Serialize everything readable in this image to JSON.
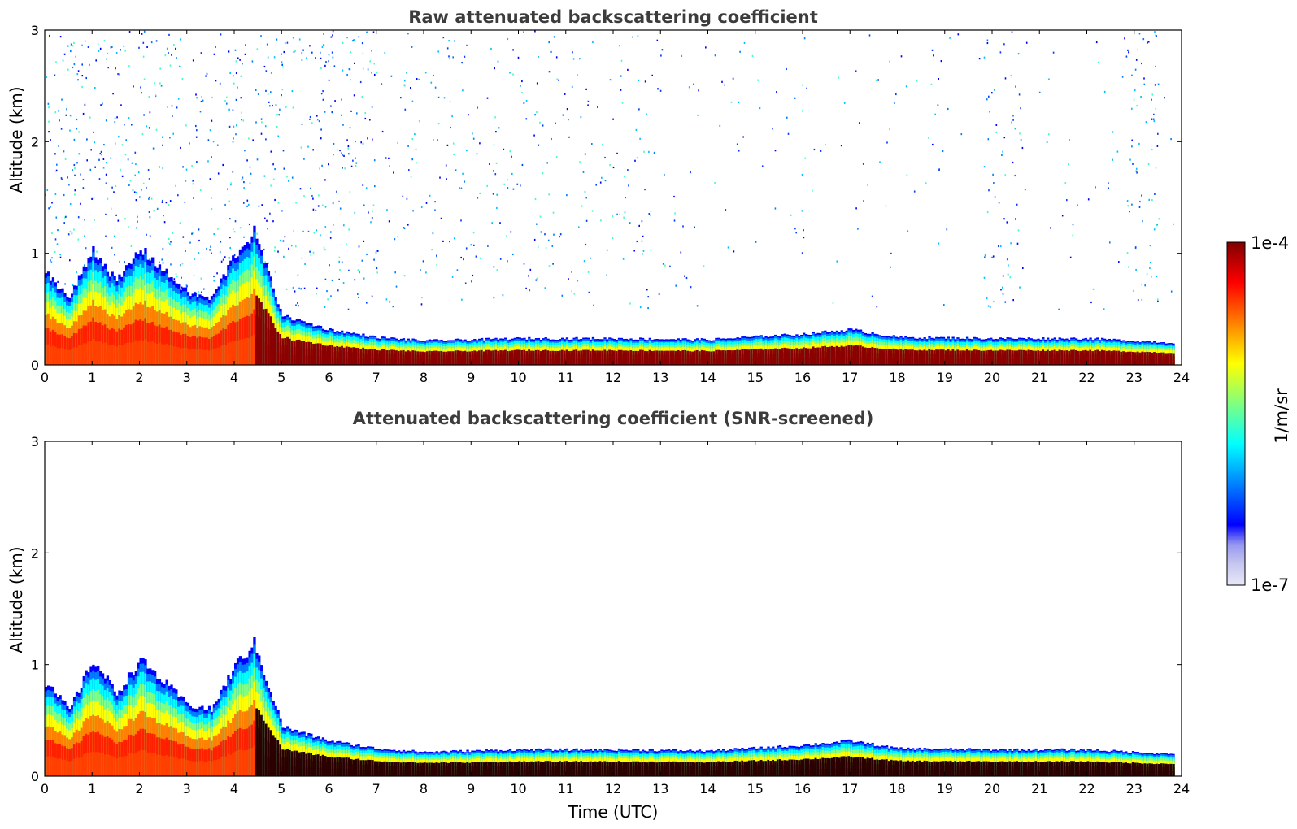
{
  "chart_data": [
    {
      "type": "heatmap",
      "title": "Raw attenuated backscattering coefficient",
      "xlabel": "",
      "ylabel": "Altitude (km)",
      "xlim": [
        0,
        24
      ],
      "ylim": [
        0,
        3
      ],
      "xticks": [
        0,
        1,
        2,
        3,
        4,
        5,
        6,
        7,
        8,
        9,
        10,
        11,
        12,
        13,
        14,
        15,
        16,
        17,
        18,
        19,
        20,
        21,
        22,
        23,
        24
      ],
      "yticks": [
        0,
        1,
        2,
        3
      ],
      "colorscale": "jet (log)",
      "layer_top_km": {
        "x": [
          0,
          0.5,
          1,
          1.5,
          2,
          2.5,
          3,
          3.5,
          4,
          4.4,
          5,
          5.5,
          6,
          7,
          8,
          10,
          12,
          14,
          16,
          17,
          18,
          20,
          22,
          23.8
        ],
        "values": [
          0.85,
          0.6,
          1.05,
          0.75,
          1.05,
          0.85,
          0.65,
          0.6,
          1.0,
          1.2,
          0.45,
          0.38,
          0.32,
          0.25,
          0.22,
          0.24,
          0.24,
          0.23,
          0.28,
          0.32,
          0.25,
          0.24,
          0.24,
          0.2
        ]
      },
      "noise": true
    },
    {
      "type": "heatmap",
      "title": "Attenuated backscattering coefficient (SNR-screened)",
      "xlabel": "Time (UTC)",
      "ylabel": "Altitude (km)",
      "xlim": [
        0,
        24
      ],
      "ylim": [
        0,
        3
      ],
      "xticks": [
        0,
        1,
        2,
        3,
        4,
        5,
        6,
        7,
        8,
        9,
        10,
        11,
        12,
        13,
        14,
        15,
        16,
        17,
        18,
        19,
        20,
        21,
        22,
        23,
        24
      ],
      "yticks": [
        0,
        1,
        2,
        3
      ],
      "colorscale": "jet (log)",
      "layer_top_km": {
        "x": [
          0,
          0.5,
          1,
          1.5,
          2,
          2.5,
          3,
          3.5,
          4,
          4.4,
          5,
          5.5,
          6,
          7,
          8,
          10,
          12,
          14,
          16,
          17,
          18,
          20,
          22,
          23.8
        ],
        "values": [
          0.85,
          0.6,
          1.05,
          0.75,
          1.05,
          0.85,
          0.65,
          0.6,
          1.0,
          1.2,
          0.45,
          0.38,
          0.32,
          0.25,
          0.22,
          0.24,
          0.24,
          0.23,
          0.28,
          0.32,
          0.25,
          0.24,
          0.24,
          0.2
        ]
      },
      "noise": false
    }
  ],
  "colorbar": {
    "max_label": "1e-4",
    "min_label": "1e-7",
    "unit_label": "1/m/sr",
    "colors": [
      "#e8e8f8",
      "#c8c8f0",
      "#9898f0",
      "#0000ff",
      "#0040ff",
      "#0080ff",
      "#00c0ff",
      "#00ffff",
      "#40ffc0",
      "#80ff80",
      "#c0ff40",
      "#ffff00",
      "#ffc000",
      "#ff8000",
      "#ff4000",
      "#ff0000",
      "#c00000",
      "#800000"
    ]
  }
}
